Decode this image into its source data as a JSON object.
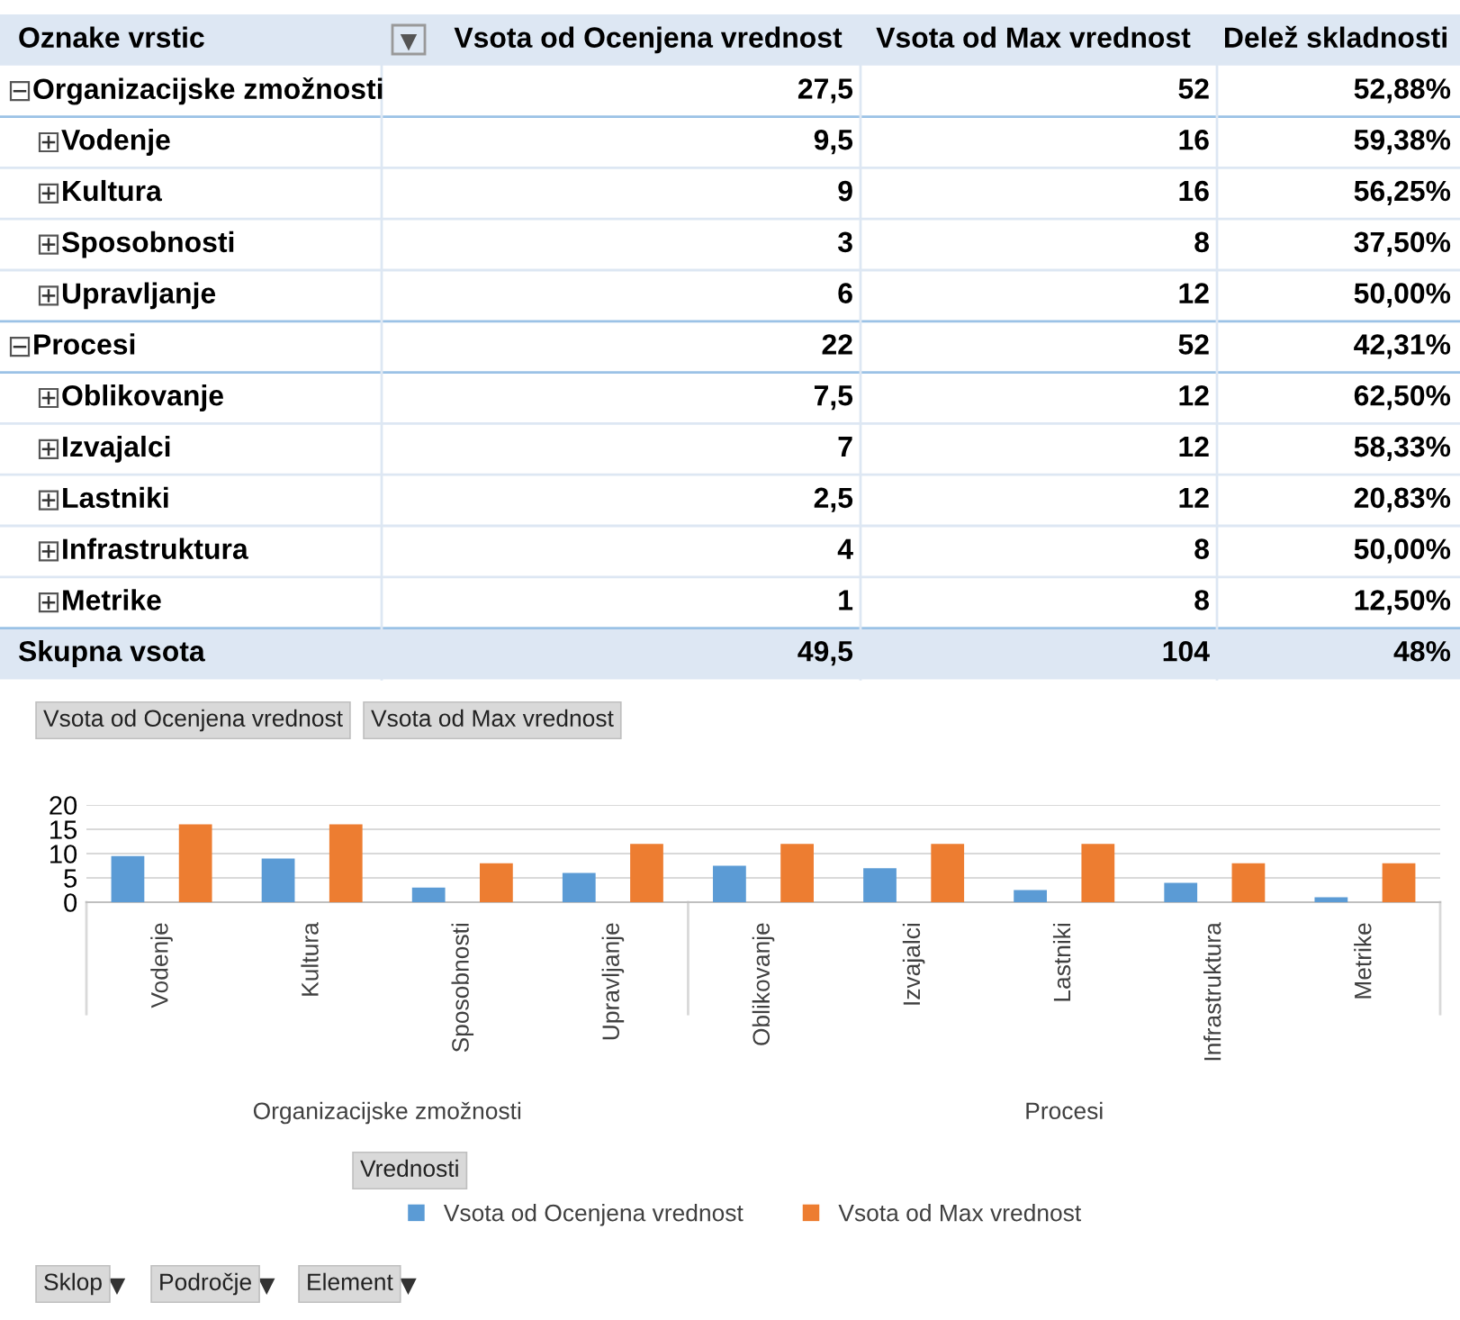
{
  "chart_data": [
    {
      "type": "other",
      "xlabel": "Oznake vrstic",
      "categories": [
        "Organizacijske zmožnosti",
        "Vodenje",
        "Kultura",
        "Sposobnosti",
        "Upravljanje",
        "Procesi",
        "Oblikovanje",
        "Izvajalci",
        "Lastniki",
        "Infrastruktura",
        "Metrike",
        "Skupna vsota"
      ],
      "series": [
        {
          "name": "Vsota od Ocenjena vrednost",
          "values": [
            27.5,
            9.5,
            9,
            3,
            6,
            22,
            7.5,
            7,
            2.5,
            4,
            1,
            49.5
          ],
          "value_labels": [
            "27,5",
            "9,5",
            "9",
            "3",
            "6",
            "22",
            "7,5",
            "7",
            "2,5",
            "4",
            "1",
            "49,5"
          ]
        },
        {
          "name": "Vsota od Max vrednost",
          "values": [
            52,
            16,
            16,
            8,
            12,
            52,
            12,
            12,
            12,
            8,
            8,
            104
          ],
          "value_labels": [
            "52",
            "16",
            "16",
            "8",
            "12",
            "52",
            "12",
            "12",
            "12",
            "8",
            "8",
            "104"
          ]
        },
        {
          "name": "Delež skladnosti",
          "values": [
            52.88,
            59.38,
            56.25,
            37.5,
            50,
            42.31,
            62.5,
            58.33,
            20.83,
            50,
            12.5,
            48
          ],
          "value_labels": [
            "52,88%",
            "59,38%",
            "56,25%",
            "37,50%",
            "50,00%",
            "42,31%",
            "62,50%",
            "58,33%",
            "20,83%",
            "50,00%",
            "12,50%",
            "48%"
          ]
        }
      ]
    },
    {
      "type": "bar",
      "categories": [
        "Vodenje",
        "Kultura",
        "Sposobnosti",
        "Upravljanje",
        "Oblikovanje",
        "Izvajalci",
        "Lastniki",
        "Infrastruktura",
        "Metrike"
      ],
      "series": [
        {
          "name": "Vsota od Ocenjena vrednost",
          "color": "#5b9bd5",
          "values": [
            9.5,
            9,
            3,
            6,
            7.5,
            7,
            2.5,
            4,
            1
          ]
        },
        {
          "name": "Vsota od Max vrednost",
          "color": "#ed7d31",
          "values": [
            16,
            16,
            8,
            12,
            12,
            12,
            12,
            8,
            8
          ]
        }
      ],
      "ylim": [
        0,
        20
      ],
      "yticks": [
        0,
        5,
        10,
        15,
        20
      ],
      "grid": "y",
      "legend": "bottom",
      "annotations": [
        "Organizacijske zmožnosti",
        "Procesi",
        "Vsota od Ocenjena vrednost",
        "Vsota od Max vrednost",
        "Vrednosti",
        "Sklop",
        "Področje",
        "Element"
      ]
    }
  ]
}
